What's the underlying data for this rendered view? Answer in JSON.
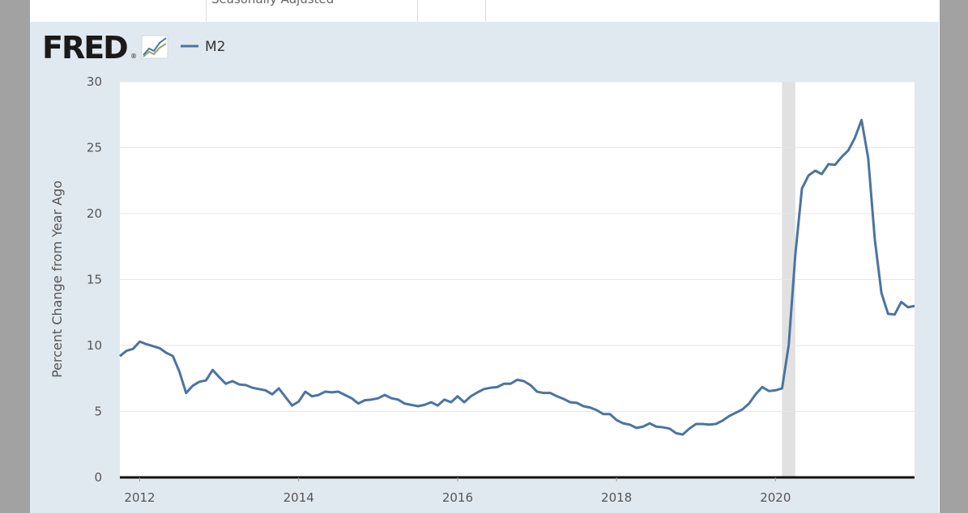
{
  "header": {
    "text": "Seasonally Adjusted"
  },
  "chart_data": {
    "type": "line",
    "logo": "FRED",
    "logo_mark": "®",
    "y_label": "Percent Change from Year Ago",
    "xlim": [
      2011.75,
      2021.75
    ],
    "xticks": [
      2012,
      2014,
      2016,
      2018,
      2020
    ],
    "ylim": [
      0,
      30
    ],
    "yticks": [
      0,
      5,
      10,
      15,
      20,
      25,
      30
    ],
    "grid": true,
    "recessions": [
      [
        2020.083,
        2020.25
      ]
    ],
    "x": [
      2011.75,
      2011.833,
      2011.917,
      2012,
      2012.083,
      2012.167,
      2012.25,
      2012.333,
      2012.417,
      2012.5,
      2012.583,
      2012.667,
      2012.75,
      2012.833,
      2012.917,
      2013,
      2013.083,
      2013.167,
      2013.25,
      2013.333,
      2013.417,
      2013.5,
      2013.583,
      2013.667,
      2013.75,
      2013.833,
      2013.917,
      2014,
      2014.083,
      2014.167,
      2014.25,
      2014.333,
      2014.417,
      2014.5,
      2014.583,
      2014.667,
      2014.75,
      2014.833,
      2014.917,
      2015,
      2015.083,
      2015.167,
      2015.25,
      2015.333,
      2015.417,
      2015.5,
      2015.583,
      2015.667,
      2015.75,
      2015.833,
      2015.917,
      2016,
      2016.083,
      2016.167,
      2016.25,
      2016.333,
      2016.417,
      2016.5,
      2016.583,
      2016.667,
      2016.75,
      2016.833,
      2016.917,
      2017,
      2017.083,
      2017.167,
      2017.25,
      2017.333,
      2017.417,
      2017.5,
      2017.583,
      2017.667,
      2017.75,
      2017.833,
      2017.917,
      2018,
      2018.083,
      2018.167,
      2018.25,
      2018.333,
      2018.417,
      2018.5,
      2018.583,
      2018.667,
      2018.75,
      2018.833,
      2018.917,
      2019,
      2019.083,
      2019.167,
      2019.25,
      2019.333,
      2019.417,
      2019.5,
      2019.583,
      2019.667,
      2019.75,
      2019.833,
      2019.917,
      2020,
      2020.083,
      2020.167,
      2020.25,
      2020.333,
      2020.417,
      2020.5,
      2020.583,
      2020.667,
      2020.75,
      2020.833,
      2020.917,
      2021,
      2021.083,
      2021.167,
      2021.25,
      2021.333,
      2021.417,
      2021.5,
      2021.583,
      2021.667,
      2021.75
    ],
    "series": [
      {
        "name": "M2",
        "color": "#4a74a2",
        "values": [
          9.2,
          9.6,
          9.75,
          10.3,
          10.1,
          9.95,
          9.8,
          9.45,
          9.2,
          8.0,
          6.4,
          6.95,
          7.25,
          7.35,
          8.15,
          7.6,
          7.1,
          7.3,
          7.05,
          7.0,
          6.8,
          6.7,
          6.6,
          6.3,
          6.75,
          6.1,
          5.45,
          5.75,
          6.5,
          6.15,
          6.25,
          6.5,
          6.45,
          6.5,
          6.25,
          6.0,
          5.6,
          5.85,
          5.9,
          6.0,
          6.25,
          6.0,
          5.9,
          5.6,
          5.5,
          5.4,
          5.5,
          5.7,
          5.45,
          5.9,
          5.7,
          6.15,
          5.7,
          6.15,
          6.45,
          6.7,
          6.8,
          6.85,
          7.1,
          7.1,
          7.4,
          7.3,
          7.0,
          6.5,
          6.4,
          6.4,
          6.15,
          5.95,
          5.7,
          5.65,
          5.4,
          5.3,
          5.1,
          4.8,
          4.8,
          4.35,
          4.1,
          4.0,
          3.75,
          3.85,
          4.1,
          3.85,
          3.8,
          3.7,
          3.35,
          3.25,
          3.7,
          4.05,
          4.05,
          4.0,
          4.05,
          4.3,
          4.65,
          4.9,
          5.15,
          5.6,
          6.3,
          6.85,
          6.55,
          6.6,
          6.75,
          10.05,
          16.9,
          21.9,
          22.9,
          23.25,
          23.0,
          23.75,
          23.7,
          24.3,
          24.8,
          25.75,
          27.1,
          24.2,
          18.05,
          14.0,
          12.4,
          12.35,
          13.3,
          12.9,
          13.0
        ]
      }
    ]
  }
}
